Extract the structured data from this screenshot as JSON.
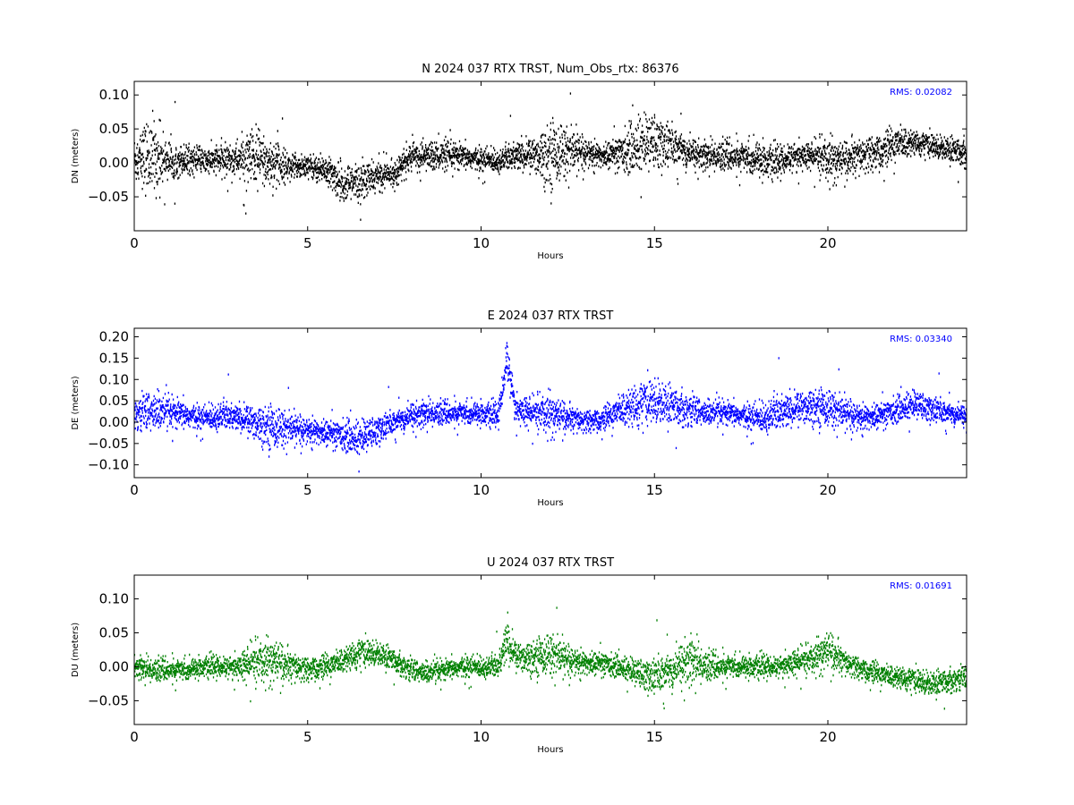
{
  "chart_data": [
    {
      "type": "scatter",
      "title": "N 2024 037 RTX  TRST, Num_Obs_rtx: 86376",
      "xlabel": "Hours",
      "ylabel": "DN (meters)",
      "xlim": [
        0,
        24
      ],
      "ylim": [
        -0.1,
        0.12
      ],
      "xticks": [
        0,
        5,
        10,
        15,
        20
      ],
      "yticks": [
        -0.05,
        0.0,
        0.05,
        0.1
      ],
      "ytick_labels": [
        "−0.05",
        "0.00",
        "0.05",
        "0.10"
      ],
      "annotation": "RMS:  0.02082",
      "color": "#000000",
      "grid": false,
      "series": [
        {
          "x": [
            0,
            0.5,
            1,
            1.5,
            2,
            2.5,
            3,
            3.5,
            4,
            4.5,
            5,
            5.5,
            6,
            6.5,
            7,
            7.5,
            8,
            8.5,
            9,
            9.5,
            10,
            10.5,
            11,
            11.5,
            12,
            12.5,
            13,
            13.5,
            14,
            14.5,
            15,
            15.5,
            16,
            16.5,
            17,
            17.5,
            18,
            18.5,
            19,
            19.5,
            20,
            20.5,
            21,
            21.5,
            22,
            22.5,
            23,
            23.5,
            24
          ],
          "mean": [
            0.005,
            0.01,
            0.005,
            0.005,
            0.002,
            0.004,
            0.005,
            0.005,
            0.0,
            -0.005,
            -0.005,
            -0.01,
            -0.03,
            -0.03,
            -0.02,
            -0.015,
            0.01,
            0.01,
            0.01,
            0.008,
            0.005,
            0.003,
            0.01,
            0.012,
            0.015,
            0.018,
            0.015,
            0.01,
            0.015,
            0.025,
            0.03,
            0.025,
            0.015,
            0.01,
            0.01,
            0.008,
            0.005,
            0.0,
            0.01,
            0.01,
            0.005,
            0.005,
            0.01,
            0.015,
            0.03,
            0.03,
            0.025,
            0.02,
            0.015
          ],
          "spread": [
            0.04,
            0.07,
            0.03,
            0.025,
            0.02,
            0.025,
            0.03,
            0.06,
            0.04,
            0.02,
            0.02,
            0.025,
            0.03,
            0.035,
            0.025,
            0.02,
            0.025,
            0.025,
            0.025,
            0.02,
            0.02,
            0.02,
            0.025,
            0.03,
            0.06,
            0.04,
            0.025,
            0.02,
            0.03,
            0.05,
            0.05,
            0.035,
            0.03,
            0.025,
            0.025,
            0.025,
            0.03,
            0.025,
            0.025,
            0.02,
            0.04,
            0.03,
            0.03,
            0.03,
            0.03,
            0.02,
            0.02,
            0.02,
            0.025
          ]
        }
      ]
    },
    {
      "type": "scatter",
      "title": "E 2024 037 RTX  TRST",
      "xlabel": "Hours",
      "ylabel": "DE (meters)",
      "xlim": [
        0,
        24
      ],
      "ylim": [
        -0.13,
        0.22
      ],
      "xticks": [
        0,
        5,
        10,
        15,
        20
      ],
      "yticks": [
        -0.1,
        -0.05,
        0.0,
        0.05,
        0.1,
        0.15,
        0.2
      ],
      "ytick_labels": [
        "−0.10",
        "−0.05",
        "0.00",
        "0.05",
        "0.10",
        "0.15",
        "0.20"
      ],
      "annotation": "RMS:  0.03340",
      "color": "#0000ff",
      "grid": false,
      "series": [
        {
          "x": [
            0,
            0.5,
            1,
            1.5,
            2,
            2.5,
            3,
            3.5,
            4,
            4.5,
            5,
            5.5,
            6,
            6.5,
            7,
            7.5,
            8,
            8.5,
            9,
            9.5,
            10,
            10.5,
            10.75,
            11,
            11.5,
            12,
            12.5,
            13,
            13.5,
            14,
            14.5,
            15,
            15.5,
            16,
            16.5,
            17,
            17.5,
            18,
            18.5,
            19,
            19.5,
            20,
            20.5,
            21,
            21.5,
            22,
            22.5,
            23,
            23.5,
            24
          ],
          "mean": [
            0.02,
            0.025,
            0.02,
            0.015,
            0.01,
            0.015,
            0.01,
            0.0,
            -0.01,
            -0.015,
            -0.02,
            -0.025,
            -0.03,
            -0.04,
            -0.02,
            0.0,
            0.015,
            0.02,
            0.02,
            0.02,
            0.02,
            0.015,
            0.15,
            0.03,
            0.02,
            0.02,
            0.01,
            0.0,
            0.005,
            0.03,
            0.04,
            0.05,
            0.04,
            0.03,
            0.02,
            0.02,
            0.015,
            0.01,
            0.02,
            0.03,
            0.04,
            0.035,
            0.02,
            0.01,
            0.015,
            0.03,
            0.04,
            0.03,
            0.02,
            0.015
          ],
          "spread": [
            0.04,
            0.06,
            0.04,
            0.035,
            0.03,
            0.04,
            0.035,
            0.05,
            0.06,
            0.04,
            0.035,
            0.035,
            0.04,
            0.05,
            0.04,
            0.03,
            0.04,
            0.035,
            0.03,
            0.03,
            0.03,
            0.03,
            0.06,
            0.035,
            0.04,
            0.06,
            0.035,
            0.03,
            0.03,
            0.04,
            0.06,
            0.06,
            0.05,
            0.045,
            0.035,
            0.03,
            0.03,
            0.04,
            0.05,
            0.045,
            0.05,
            0.05,
            0.04,
            0.035,
            0.035,
            0.035,
            0.04,
            0.035,
            0.03,
            0.03
          ]
        }
      ]
    },
    {
      "type": "scatter",
      "title": "U 2024 037 RTX  TRST",
      "xlabel": "Hours",
      "ylabel": "DU (meters)",
      "xlim": [
        0,
        24
      ],
      "ylim": [
        -0.085,
        0.135
      ],
      "xticks": [
        0,
        5,
        10,
        15,
        20
      ],
      "yticks": [
        -0.05,
        0.0,
        0.05,
        0.1
      ],
      "ytick_labels": [
        "−0.05",
        "0.00",
        "0.05",
        "0.10"
      ],
      "annotation": "RMS:  0.01691",
      "color": "#008000",
      "grid": false,
      "series": [
        {
          "x": [
            0,
            0.5,
            1,
            1.5,
            2,
            2.5,
            3,
            3.5,
            4,
            4.5,
            5,
            5.5,
            6,
            6.5,
            7,
            7.5,
            8,
            8.5,
            9,
            9.5,
            10,
            10.5,
            10.75,
            11,
            11.5,
            12,
            12.5,
            13,
            13.5,
            14,
            14.5,
            15,
            15.5,
            16,
            16.5,
            17,
            17.5,
            18,
            18.5,
            19,
            19.5,
            20,
            20.5,
            21,
            21.5,
            22,
            22.5,
            23,
            23.5,
            24
          ],
          "mean": [
            0.0,
            -0.005,
            -0.005,
            -0.005,
            0.0,
            0.0,
            0.0,
            0.005,
            0.01,
            0.0,
            -0.005,
            0.0,
            0.01,
            0.02,
            0.02,
            0.01,
            -0.005,
            -0.01,
            -0.005,
            0.0,
            0.0,
            0.0,
            0.04,
            0.015,
            0.015,
            0.02,
            0.01,
            0.005,
            0.005,
            0.0,
            -0.01,
            -0.015,
            -0.005,
            0.01,
            0.0,
            0.0,
            0.0,
            0.0,
            0.0,
            0.005,
            0.01,
            0.025,
            0.005,
            -0.005,
            -0.01,
            -0.015,
            -0.02,
            -0.025,
            -0.02,
            -0.015
          ],
          "spread": [
            0.02,
            0.02,
            0.018,
            0.018,
            0.016,
            0.018,
            0.02,
            0.035,
            0.04,
            0.025,
            0.02,
            0.02,
            0.02,
            0.025,
            0.02,
            0.018,
            0.02,
            0.018,
            0.016,
            0.018,
            0.018,
            0.02,
            0.04,
            0.025,
            0.03,
            0.035,
            0.025,
            0.02,
            0.02,
            0.018,
            0.025,
            0.03,
            0.035,
            0.045,
            0.025,
            0.02,
            0.018,
            0.018,
            0.018,
            0.02,
            0.025,
            0.035,
            0.02,
            0.018,
            0.018,
            0.018,
            0.02,
            0.02,
            0.02,
            0.02
          ]
        }
      ]
    }
  ]
}
